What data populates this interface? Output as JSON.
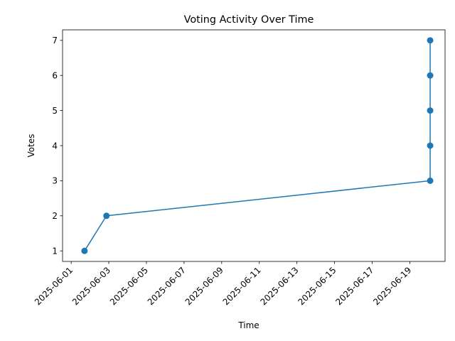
{
  "chart_data": {
    "type": "line",
    "title": "Voting Activity Over Time",
    "xlabel": "Time",
    "ylabel": "Votes",
    "x_ticks": [
      "2025-06-01",
      "2025-06-03",
      "2025-06-05",
      "2025-06-07",
      "2025-06-09",
      "2025-06-11",
      "2025-06-13",
      "2025-06-15",
      "2025-06-17",
      "2025-06-19"
    ],
    "y_ticks": [
      1,
      2,
      3,
      4,
      5,
      6,
      7
    ],
    "xlim": [
      "2025-05-31T13:00",
      "2025-06-20T21:00"
    ],
    "ylim": [
      0.7,
      7.3
    ],
    "grid": false,
    "series": [
      {
        "color": "#1f77b4",
        "marker": "circle",
        "points": [
          {
            "x": "2025-06-01T17:00",
            "y": 1
          },
          {
            "x": "2025-06-02T21:00",
            "y": 2
          },
          {
            "x": "2025-06-20T02:00",
            "y": 3
          },
          {
            "x": "2025-06-20T02:00",
            "y": 4
          },
          {
            "x": "2025-06-20T02:00",
            "y": 5
          },
          {
            "x": "2025-06-20T02:00",
            "y": 6
          },
          {
            "x": "2025-06-20T02:00",
            "y": 7
          }
        ]
      }
    ]
  }
}
